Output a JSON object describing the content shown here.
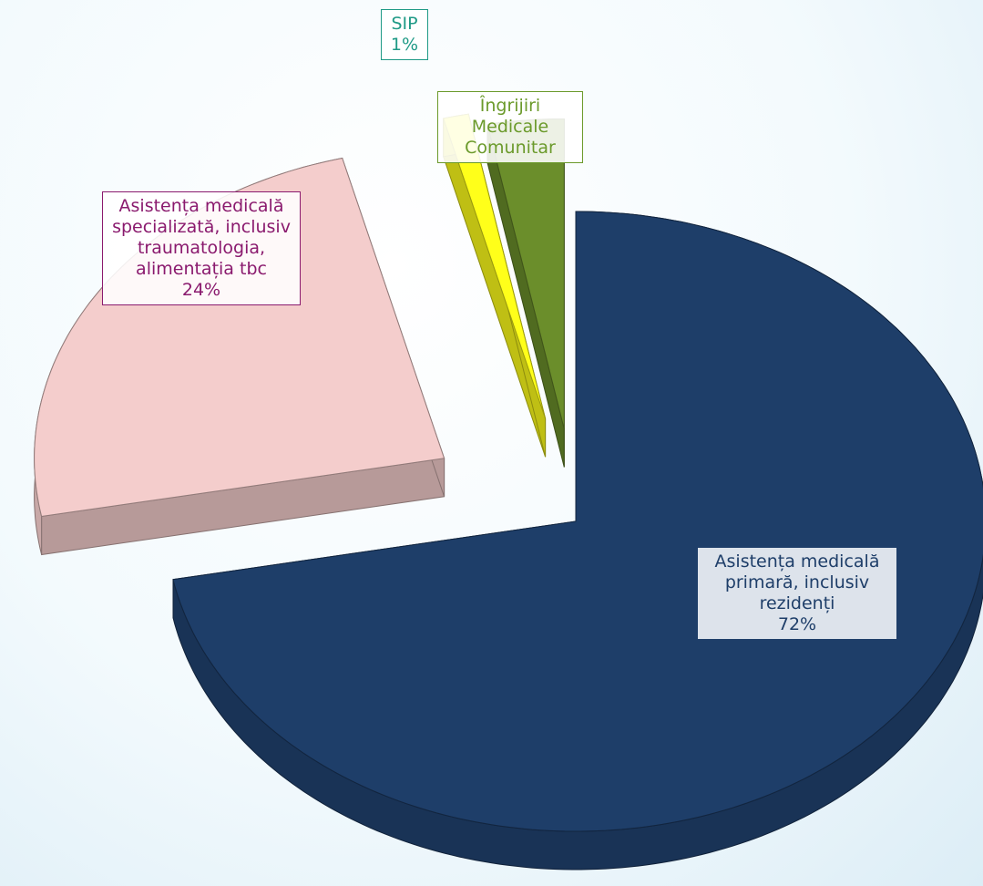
{
  "chart_data": {
    "type": "pie",
    "categories": [
      "Asistența medicală primară, inclusiv rezidenți",
      "Asistența medicală specializată, inclusiv traumatologia, alimentația tbc",
      "SIP",
      "Îngrijiri Medicale Comunitar"
    ],
    "values": [
      72,
      24,
      1,
      3
    ],
    "value_labels": [
      "72%",
      "24%",
      "1%",
      null
    ],
    "colors": [
      "#1e3e69",
      "#f4cdcc",
      "#ffff1a",
      "#6b8e2b"
    ],
    "label_colors": [
      "#1e3e69",
      "#8a1a6e",
      "#1f9a86",
      "#6b9a2b"
    ]
  }
}
